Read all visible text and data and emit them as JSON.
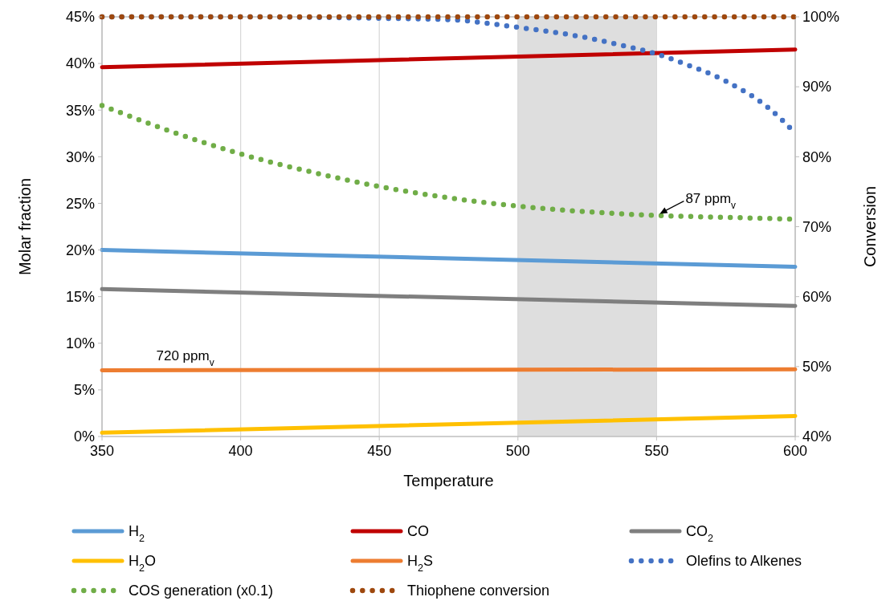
{
  "chart_data": {
    "type": "line",
    "xlabel": "Temperature",
    "ylabel": "Molar fraction",
    "y2label": "Conversion",
    "xlim": [
      350,
      600
    ],
    "xticks": [
      350,
      400,
      450,
      500,
      550,
      600
    ],
    "ylim": [
      0,
      45
    ],
    "yticks": [
      {
        "value": 0,
        "label": "0%"
      },
      {
        "value": 5,
        "label": "5%"
      },
      {
        "value": 10,
        "label": "10%"
      },
      {
        "value": 15,
        "label": "15%"
      },
      {
        "value": 20,
        "label": "20%"
      },
      {
        "value": 25,
        "label": "25%"
      },
      {
        "value": 30,
        "label": "30%"
      },
      {
        "value": 35,
        "label": "35%"
      },
      {
        "value": 40,
        "label": "40%"
      },
      {
        "value": 45,
        "label": "45%"
      }
    ],
    "y2lim": [
      40,
      100
    ],
    "y2ticks": [
      {
        "value": 40,
        "label": "40%"
      },
      {
        "value": 50,
        "label": "50%"
      },
      {
        "value": 60,
        "label": "60%"
      },
      {
        "value": 70,
        "label": "70%"
      },
      {
        "value": 80,
        "label": "80%"
      },
      {
        "value": 90,
        "label": "90%"
      },
      {
        "value": 100,
        "label": "100%"
      }
    ],
    "grid": "x",
    "legend": "bottom",
    "bands": [
      {
        "axis": "x",
        "from": 500,
        "to": 550,
        "color": "#dedede"
      }
    ],
    "annotations": [
      {
        "text": "87 ppm$_{v}$",
        "x": 550,
        "y": 23.7
      },
      {
        "text": "720 ppm$_{v}$",
        "x": 380,
        "y": 7.1
      }
    ],
    "series": [
      {
        "name": "H$_{2}$",
        "color": "#5b9bd5",
        "line_style": "solid",
        "x": [
          350,
          600
        ],
        "values": [
          20.0,
          18.2
        ]
      },
      {
        "name": "CO",
        "color": "#c00000",
        "line_style": "solid",
        "x": [
          350,
          600
        ],
        "values": [
          39.6,
          41.5
        ]
      },
      {
        "name": "CO$_{2}$",
        "color": "#7f7f7f",
        "line_style": "solid",
        "x": [
          350,
          600
        ],
        "values": [
          15.8,
          14.0
        ]
      },
      {
        "name": "H$_{2}$O",
        "color": "#ffc000",
        "line_style": "solid",
        "x": [
          350,
          600
        ],
        "values": [
          0.4,
          2.2
        ]
      },
      {
        "name": "H$_{2}$S",
        "color": "#ed7d31",
        "line_style": "solid",
        "x": [
          350,
          600
        ],
        "values": [
          7.1,
          7.2
        ]
      },
      {
        "name": "Olefins to Alkenes",
        "color": "#4472c4",
        "line_style": "dotted",
        "axis": "y2",
        "x": [
          350,
          400,
          450,
          475,
          500,
          525,
          540,
          550,
          560,
          575,
          590,
          600
        ],
        "values": [
          100,
          100,
          99.8,
          99.6,
          98.5,
          97,
          95.7,
          94.7,
          93.3,
          90.8,
          87.1,
          83.4
        ]
      },
      {
        "name": "COS generation (x0.1)",
        "color": "#70ad47",
        "line_style": "dotted",
        "x": [
          350,
          375,
          400,
          425,
          450,
          475,
          500,
          525,
          550,
          575,
          600
        ],
        "values": [
          35.5,
          32.7,
          30.3,
          28.4,
          26.8,
          25.6,
          24.7,
          24.1,
          23.7,
          23.5,
          23.3
        ]
      },
      {
        "name": "Thiophene conversion",
        "color": "#9e480e",
        "line_style": "dotted",
        "axis": "y2",
        "x": [
          350,
          600
        ],
        "values": [
          100,
          100
        ]
      }
    ]
  }
}
